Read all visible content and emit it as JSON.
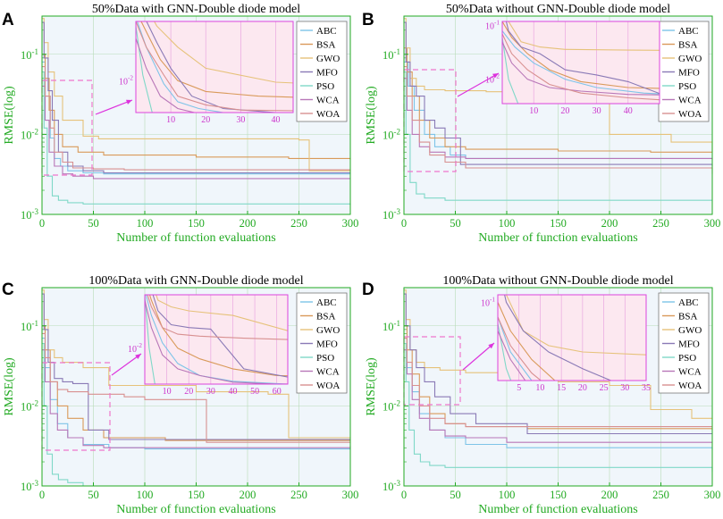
{
  "colors": {
    "axis": "#22aa22",
    "grid": "#b8dcb8",
    "plot_bg": "#f0f6fb",
    "inset_bg": "#fce8f0",
    "inset_frame": "#dd44dd",
    "zoom_box": "#ee77cc",
    "arrow": "#dd33dd"
  },
  "series_colors": {
    "ABC": "#7ec4e8",
    "BSA": "#d99a5a",
    "GWO": "#e6c27a",
    "MFO": "#8a7ab6",
    "PSO": "#7fd8c8",
    "WCA": "#b877b8",
    "WOA": "#d89090"
  },
  "chart_data": [
    {
      "panel": "A",
      "type": "line",
      "yscale": "log",
      "title": "50%Data with GNN-Double diode model",
      "xlabel": "Number of function evaluations",
      "ylabel": "RMSE(log)",
      "xlim": [
        0,
        300
      ],
      "ylim": [
        0.001,
        0.3
      ],
      "xticks": [
        "0",
        "50",
        "100",
        "150",
        "200",
        "250",
        "300"
      ],
      "yticks": [
        "10^-1",
        "10^-2",
        "10^-3"
      ],
      "legend": [
        "ABC",
        "BSA",
        "GWO",
        "MFO",
        "PSO",
        "WCA",
        "WOA"
      ],
      "series": [
        {
          "name": "ABC",
          "x": [
            0,
            3,
            8,
            12,
            18,
            25,
            40,
            60,
            300
          ],
          "y": [
            0.08,
            0.03,
            0.009,
            0.005,
            0.004,
            0.0035,
            0.0033,
            0.0032,
            0.0032
          ]
        },
        {
          "name": "BSA",
          "x": [
            0,
            3,
            7,
            12,
            20,
            35,
            60,
            150,
            240,
            300
          ],
          "y": [
            0.1,
            0.05,
            0.02,
            0.01,
            0.007,
            0.006,
            0.0055,
            0.0052,
            0.005,
            0.0048
          ]
        },
        {
          "name": "GWO",
          "x": [
            0,
            2,
            6,
            12,
            20,
            40,
            55,
            250,
            260,
            300
          ],
          "y": [
            0.28,
            0.14,
            0.06,
            0.03,
            0.015,
            0.0095,
            0.0088,
            0.0085,
            0.0035,
            0.0035
          ]
        },
        {
          "name": "MFO",
          "x": [
            0,
            2,
            6,
            10,
            16,
            25,
            40,
            60,
            300
          ],
          "y": [
            0.25,
            0.09,
            0.035,
            0.015,
            0.006,
            0.004,
            0.0035,
            0.0033,
            0.0033
          ]
        },
        {
          "name": "PSO",
          "x": [
            0,
            2,
            5,
            10,
            16,
            25,
            40,
            300
          ],
          "y": [
            0.06,
            0.012,
            0.003,
            0.0017,
            0.0015,
            0.0014,
            0.00135,
            0.0013
          ]
        },
        {
          "name": "WCA",
          "x": [
            0,
            3,
            7,
            12,
            20,
            30,
            50,
            300
          ],
          "y": [
            0.04,
            0.015,
            0.006,
            0.004,
            0.0032,
            0.003,
            0.0028,
            0.0028
          ]
        },
        {
          "name": "WOA",
          "x": [
            0,
            3,
            8,
            12,
            20,
            30,
            50,
            80,
            300
          ],
          "y": [
            0.07,
            0.03,
            0.012,
            0.006,
            0.0045,
            0.0038,
            0.0037,
            0.0036,
            0.0036
          ]
        }
      ],
      "inset": {
        "xlim": [
          0,
          45
        ],
        "ylim": [
          0.0035,
          0.07
        ],
        "xticks": [
          "10",
          "20",
          "30",
          "40"
        ],
        "yticks": [
          "10^-2"
        ]
      }
    },
    {
      "panel": "B",
      "type": "line",
      "yscale": "log",
      "title": "50%Data without GNN-Double diode model",
      "xlabel": "Number of function evaluations",
      "ylabel": "RMSE(log)",
      "xlim": [
        0,
        300
      ],
      "ylim": [
        0.001,
        0.3
      ],
      "xticks": [
        "0",
        "50",
        "100",
        "150",
        "200",
        "250",
        "300"
      ],
      "yticks": [
        "10^-1",
        "10^-2",
        "10^-3"
      ],
      "legend": [
        "ABC",
        "BSA",
        "GWO",
        "MFO",
        "PSO",
        "WCA",
        "WOA"
      ],
      "series": [
        {
          "name": "ABC",
          "x": [
            0,
            4,
            10,
            20,
            30,
            45,
            60,
            300
          ],
          "y": [
            0.08,
            0.04,
            0.02,
            0.01,
            0.007,
            0.0055,
            0.005,
            0.005
          ]
        },
        {
          "name": "BSA",
          "x": [
            0,
            3,
            8,
            15,
            25,
            40,
            60,
            150,
            240,
            300
          ],
          "y": [
            0.12,
            0.06,
            0.03,
            0.015,
            0.009,
            0.007,
            0.0065,
            0.0062,
            0.006,
            0.006
          ]
        },
        {
          "name": "GWO",
          "x": [
            0,
            2,
            6,
            12,
            20,
            40,
            80,
            150,
            200,
            260,
            300
          ],
          "y": [
            0.28,
            0.12,
            0.05,
            0.04,
            0.036,
            0.035,
            0.034,
            0.03,
            0.01,
            0.008,
            0.006
          ]
        },
        {
          "name": "MFO",
          "x": [
            0,
            2,
            6,
            12,
            20,
            30,
            40,
            55,
            300
          ],
          "y": [
            0.25,
            0.08,
            0.04,
            0.03,
            0.015,
            0.012,
            0.009,
            0.0042,
            0.004
          ]
        },
        {
          "name": "PSO",
          "x": [
            0,
            2,
            6,
            12,
            20,
            40,
            300
          ],
          "y": [
            0.06,
            0.01,
            0.0025,
            0.0018,
            0.0016,
            0.0015,
            0.0015
          ]
        },
        {
          "name": "WCA",
          "x": [
            0,
            3,
            8,
            15,
            25,
            40,
            60,
            300
          ],
          "y": [
            0.05,
            0.02,
            0.01,
            0.007,
            0.006,
            0.0052,
            0.005,
            0.0048
          ]
        },
        {
          "name": "WOA",
          "x": [
            0,
            3,
            8,
            15,
            25,
            40,
            60,
            300
          ],
          "y": [
            0.07,
            0.03,
            0.015,
            0.008,
            0.0055,
            0.0045,
            0.0038,
            0.0032
          ]
        }
      ],
      "inset": {
        "xlim": [
          0,
          50
        ],
        "ylim": [
          0.0035,
          0.12
        ],
        "xticks": [
          "10",
          "20",
          "30",
          "40"
        ],
        "yticks": [
          "10^-1",
          "10^-2"
        ]
      }
    },
    {
      "panel": "C",
      "type": "line",
      "yscale": "log",
      "title": "100%Data with GNN-Double diode model",
      "xlabel": "Number of function evaluations",
      "ylabel": "RMSE(log)",
      "xlim": [
        0,
        300
      ],
      "ylim": [
        0.001,
        0.3
      ],
      "xticks": [
        "0",
        "50",
        "100",
        "150",
        "200",
        "250",
        "300"
      ],
      "yticks": [
        "10^-1",
        "10^-2",
        "10^-3"
      ],
      "legend": [
        "ABC",
        "BSA",
        "GWO",
        "MFO",
        "PSO",
        "WCA",
        "WOA"
      ],
      "series": [
        {
          "name": "ABC",
          "x": [
            0,
            3,
            8,
            15,
            25,
            40,
            65,
            100,
            300
          ],
          "y": [
            0.07,
            0.03,
            0.012,
            0.006,
            0.004,
            0.0033,
            0.003,
            0.0029,
            0.0028
          ]
        },
        {
          "name": "BSA",
          "x": [
            0,
            3,
            8,
            15,
            25,
            40,
            60,
            120,
            200,
            300
          ],
          "y": [
            0.1,
            0.05,
            0.02,
            0.01,
            0.007,
            0.005,
            0.004,
            0.0037,
            0.0037,
            0.0037
          ]
        },
        {
          "name": "GWO",
          "x": [
            0,
            2,
            6,
            12,
            20,
            40,
            65,
            150,
            220,
            240,
            300
          ],
          "y": [
            0.28,
            0.12,
            0.05,
            0.04,
            0.035,
            0.03,
            0.018,
            0.015,
            0.014,
            0.004,
            0.004
          ]
        },
        {
          "name": "MFO",
          "x": [
            0,
            2,
            6,
            12,
            20,
            30,
            45,
            65,
            300
          ],
          "y": [
            0.25,
            0.09,
            0.035,
            0.022,
            0.02,
            0.019,
            0.005,
            0.0038,
            0.0038
          ]
        },
        {
          "name": "PSO",
          "x": [
            0,
            2,
            5,
            10,
            16,
            25,
            40,
            300
          ],
          "y": [
            0.06,
            0.01,
            0.0025,
            0.0014,
            0.0012,
            0.0011,
            0.001,
            0.001
          ]
        },
        {
          "name": "WCA",
          "x": [
            0,
            3,
            8,
            15,
            25,
            40,
            60,
            300
          ],
          "y": [
            0.05,
            0.02,
            0.008,
            0.005,
            0.004,
            0.0032,
            0.003,
            0.0032
          ]
        },
        {
          "name": "WOA",
          "x": [
            0,
            3,
            8,
            15,
            25,
            45,
            80,
            100,
            160,
            300
          ],
          "y": [
            0.08,
            0.04,
            0.02,
            0.016,
            0.015,
            0.014,
            0.013,
            0.012,
            0.0035,
            0.0035
          ]
        }
      ],
      "inset": {
        "xlim": [
          0,
          65
        ],
        "ylim": [
          0.003,
          0.06
        ],
        "xticks": [
          "10",
          "20",
          "30",
          "40",
          "50",
          "60"
        ],
        "yticks": [
          "10^-2"
        ]
      }
    },
    {
      "panel": "D",
      "type": "line",
      "yscale": "log",
      "title": "100%Data without GNN-Double diode model",
      "xlabel": "Number of function evaluations",
      "ylabel": "RMSE(log)",
      "xlim": [
        0,
        300
      ],
      "ylim": [
        0.001,
        0.3
      ],
      "xticks": [
        "0",
        "50",
        "100",
        "150",
        "200",
        "250",
        "300"
      ],
      "yticks": [
        "10^-1",
        "10^-2",
        "10^-3"
      ],
      "legend": [
        "ABC",
        "BSA",
        "GWO",
        "MFO",
        "PSO",
        "WCA",
        "WOA"
      ],
      "series": [
        {
          "name": "ABC",
          "x": [
            0,
            3,
            8,
            15,
            25,
            40,
            60,
            100,
            300
          ],
          "y": [
            0.07,
            0.03,
            0.015,
            0.008,
            0.005,
            0.004,
            0.0033,
            0.003,
            0.0028
          ]
        },
        {
          "name": "BSA",
          "x": [
            0,
            3,
            8,
            15,
            25,
            40,
            60,
            120,
            300
          ],
          "y": [
            0.1,
            0.05,
            0.025,
            0.013,
            0.008,
            0.006,
            0.0055,
            0.0052,
            0.005
          ]
        },
        {
          "name": "GWO",
          "x": [
            0,
            2,
            6,
            12,
            20,
            35,
            60,
            150,
            200,
            240,
            280,
            300
          ],
          "y": [
            0.28,
            0.12,
            0.05,
            0.035,
            0.03,
            0.028,
            0.026,
            0.02,
            0.018,
            0.009,
            0.007,
            0.007
          ]
        },
        {
          "name": "MFO",
          "x": [
            0,
            2,
            6,
            12,
            20,
            30,
            45,
            70,
            120,
            300
          ],
          "y": [
            0.25,
            0.1,
            0.05,
            0.03,
            0.02,
            0.013,
            0.008,
            0.006,
            0.0045,
            0.0045
          ]
        },
        {
          "name": "PSO",
          "x": [
            0,
            2,
            5,
            10,
            16,
            25,
            40,
            300
          ],
          "y": [
            0.06,
            0.02,
            0.005,
            0.0025,
            0.002,
            0.0018,
            0.0017,
            0.0015
          ]
        },
        {
          "name": "WCA",
          "x": [
            0,
            3,
            8,
            15,
            25,
            40,
            60,
            100,
            300
          ],
          "y": [
            0.05,
            0.025,
            0.012,
            0.007,
            0.005,
            0.0042,
            0.004,
            0.0035,
            0.0035
          ]
        },
        {
          "name": "WOA",
          "x": [
            0,
            3,
            8,
            15,
            25,
            40,
            60,
            100,
            300
          ],
          "y": [
            0.07,
            0.035,
            0.018,
            0.01,
            0.007,
            0.006,
            0.0055,
            0.0055,
            0.0055
          ]
        }
      ],
      "inset": {
        "xlim": [
          0,
          35
        ],
        "ylim": [
          0.015,
          0.12
        ],
        "xticks": [
          "5",
          "10",
          "15",
          "20",
          "25",
          "30",
          "35"
        ],
        "yticks": [
          "10^-1"
        ]
      }
    }
  ]
}
